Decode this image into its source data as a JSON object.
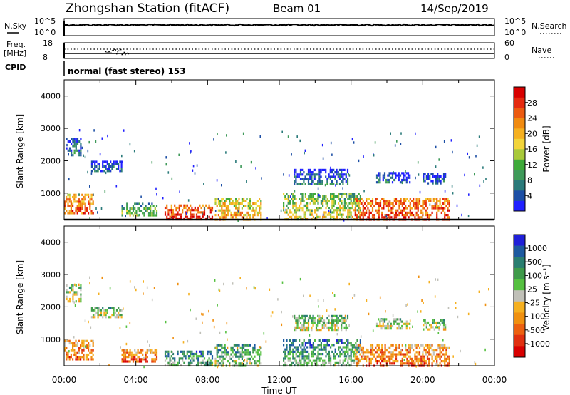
{
  "header": {
    "station": "Zhongshan Station (fitACF)",
    "beam": "Beam 01",
    "date": "14/Sep/2019"
  },
  "strips": {
    "nsky_label": "N.Sky",
    "nsearch_label": "N.Search",
    "freq_label_line1": "Freq.",
    "freq_label_line2": "[MHz]",
    "nave_label": "Nave",
    "cpid_label": "CPID",
    "cpid_text": "normal (fast stereo) 153",
    "noise_left_ticks": [
      "10^5",
      "10^0"
    ],
    "noise_right_ticks": [
      "10^5",
      "10^0"
    ],
    "freq_left_ticks": [
      "18",
      "8"
    ],
    "freq_right_ticks": [
      "60",
      "0"
    ]
  },
  "chart_data": [
    {
      "type": "heatmap",
      "panel": "power",
      "xlabel": "",
      "ylabel": "Slant Range [km]",
      "x_range_hours": [
        0,
        24
      ],
      "ylim": [
        180,
        4500
      ],
      "y_ticks": [
        "1000",
        "2000",
        "3000",
        "4000"
      ],
      "colorbar_label": "Power [dB]",
      "colorbar_ticks": [
        "4",
        "8",
        "12",
        "16",
        "20",
        "24",
        "28"
      ],
      "colorbar_colors": [
        "#2020ff",
        "#1d4fa5",
        "#2a7a7a",
        "#3f9a5a",
        "#3faa3a",
        "#a8c93a",
        "#f2d43a",
        "#f5b020",
        "#f08a10",
        "#ec5a10",
        "#e52a10",
        "#d80000"
      ],
      "echo_regions": [
        {
          "t0": 0.0,
          "t1": 1.6,
          "r0": 380,
          "r1": 980,
          "level": 0.72
        },
        {
          "t0": 0.1,
          "t1": 0.9,
          "r0": 2150,
          "r1": 2700,
          "level": 0.15
        },
        {
          "t0": 1.5,
          "t1": 3.2,
          "r0": 1650,
          "r1": 2000,
          "level": 0.12
        },
        {
          "t0": 3.2,
          "t1": 5.2,
          "r0": 300,
          "r1": 700,
          "level": 0.35
        },
        {
          "t0": 5.6,
          "t1": 8.3,
          "r0": 200,
          "r1": 650,
          "level": 0.85
        },
        {
          "t0": 8.4,
          "t1": 11.0,
          "r0": 200,
          "r1": 850,
          "level": 0.6
        },
        {
          "t0": 12.8,
          "t1": 15.8,
          "r0": 1300,
          "r1": 1750,
          "level": 0.1
        },
        {
          "t0": 12.2,
          "t1": 16.5,
          "r0": 200,
          "r1": 1000,
          "level": 0.45
        },
        {
          "t0": 16.2,
          "t1": 21.5,
          "r0": 180,
          "r1": 850,
          "level": 0.8
        },
        {
          "t0": 17.4,
          "t1": 19.3,
          "r0": 1350,
          "r1": 1650,
          "level": 0.1
        },
        {
          "t0": 20.0,
          "t1": 21.3,
          "r0": 1330,
          "r1": 1620,
          "level": 0.1
        }
      ]
    },
    {
      "type": "heatmap",
      "panel": "velocity",
      "xlabel": "Time UT",
      "ylabel": "Slant Range [km]",
      "x_range_hours": [
        0,
        24
      ],
      "ylim": [
        180,
        4500
      ],
      "x_ticks": [
        "00:00",
        "04:00",
        "08:00",
        "12:00",
        "16:00",
        "20:00",
        "00:00"
      ],
      "y_ticks": [
        "1000",
        "2000",
        "3000",
        "4000"
      ],
      "colorbar_label": "Velocity [m s⁻¹]",
      "colorbar_ticks": [
        "1000",
        "500",
        "100",
        "25",
        "-25",
        "-100",
        "-500",
        "-1000"
      ],
      "colorbar_colors": [
        "#2020d8",
        "#1d5aa0",
        "#2a7e70",
        "#3f9a4a",
        "#55c040",
        "#c0c0b8",
        "#f5b020",
        "#f09010",
        "#ec6010",
        "#e03010",
        "#d80000"
      ],
      "echo_regions": [
        {
          "t0": 0.0,
          "t1": 1.6,
          "r0": 380,
          "r1": 980,
          "level": 0.7
        },
        {
          "t0": 0.1,
          "t1": 0.9,
          "r0": 2150,
          "r1": 2700,
          "level": 0.45
        },
        {
          "t0": 1.5,
          "t1": 3.2,
          "r0": 1650,
          "r1": 2000,
          "level": 0.45
        },
        {
          "t0": 3.2,
          "t1": 5.2,
          "r0": 300,
          "r1": 700,
          "level": 0.75
        },
        {
          "t0": 5.6,
          "t1": 8.3,
          "r0": 200,
          "r1": 650,
          "level": 0.3
        },
        {
          "t0": 8.4,
          "t1": 11.0,
          "r0": 200,
          "r1": 850,
          "level": 0.35
        },
        {
          "t0": 12.8,
          "t1": 15.8,
          "r0": 1300,
          "r1": 1750,
          "level": 0.45
        },
        {
          "t0": 12.2,
          "t1": 16.5,
          "r0": 200,
          "r1": 1000,
          "level": 0.3
        },
        {
          "t0": 16.2,
          "t1": 21.5,
          "r0": 180,
          "r1": 850,
          "level": 0.72
        },
        {
          "t0": 17.4,
          "t1": 19.3,
          "r0": 1350,
          "r1": 1650,
          "level": 0.45
        },
        {
          "t0": 20.0,
          "t1": 21.3,
          "r0": 1330,
          "r1": 1620,
          "level": 0.45
        }
      ]
    }
  ]
}
